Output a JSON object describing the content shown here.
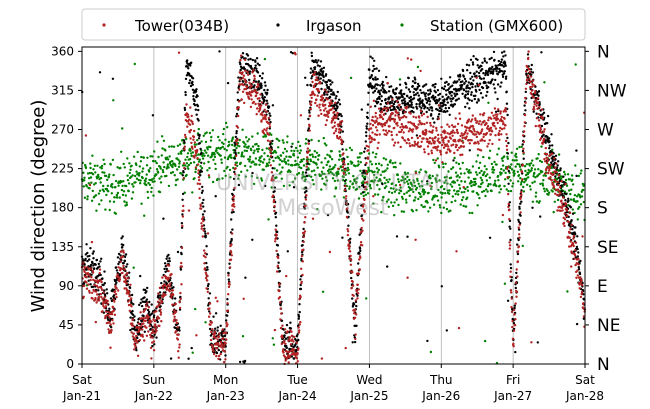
{
  "chart_data": {
    "type": "scatter",
    "ylabel": "Wind direction (degree)",
    "ylim": [
      0,
      365
    ],
    "yticks": [
      0,
      45,
      90,
      135,
      180,
      225,
      270,
      315,
      360
    ],
    "compass_labels": [
      {
        "value": 0,
        "label": "N"
      },
      {
        "value": 45,
        "label": "NE"
      },
      {
        "value": 90,
        "label": "E"
      },
      {
        "value": 135,
        "label": "SE"
      },
      {
        "value": 180,
        "label": "S"
      },
      {
        "value": 225,
        "label": "SW"
      },
      {
        "value": 270,
        "label": "W"
      },
      {
        "value": 315,
        "label": "NW"
      },
      {
        "value": 360,
        "label": "N"
      }
    ],
    "xlim": [
      "2017-01-21",
      "2017-01-28"
    ],
    "xticks": [
      {
        "day": 0,
        "line1": "Sat",
        "line2": "Jan-21"
      },
      {
        "day": 1,
        "line1": "Sun",
        "line2": "Jan-22"
      },
      {
        "day": 2,
        "line1": "Mon",
        "line2": "Jan-23"
      },
      {
        "day": 3,
        "line1": "Tue",
        "line2": "Jan-24"
      },
      {
        "day": 4,
        "line1": "Wed",
        "line2": "Jan-25"
      },
      {
        "day": 5,
        "line1": "Thu",
        "line2": "Jan-26"
      },
      {
        "day": 6,
        "line1": "Fri",
        "line2": "Jan-27"
      },
      {
        "day": 7,
        "line1": "Sat",
        "line2": "Jan-28"
      }
    ],
    "grid": "vertical",
    "legend_position": "top-center",
    "watermark_lines": [
      "UNIVERSITY OF UTAH",
      "MesoWest"
    ],
    "series": [
      {
        "name": "Tower(034B)",
        "color": "#b22222",
        "points_per_day": 260,
        "approx_direction": [
          [
            0,
            105
          ],
          [
            0.25,
            85
          ],
          [
            0.4,
            45
          ],
          [
            0.55,
            125
          ],
          [
            0.75,
            25
          ],
          [
            0.9,
            55
          ],
          [
            1.0,
            35
          ],
          [
            1.2,
            110
          ],
          [
            1.35,
            20
          ],
          [
            1.45,
            295
          ],
          [
            1.6,
            240
          ],
          [
            1.8,
            30
          ],
          [
            2.0,
            20
          ],
          [
            2.2,
            330
          ],
          [
            2.4,
            315
          ],
          [
            2.6,
            270
          ],
          [
            2.8,
            20
          ],
          [
            3.0,
            15
          ],
          [
            3.2,
            325
          ],
          [
            3.4,
            295
          ],
          [
            3.6,
            270
          ],
          [
            3.8,
            45
          ],
          [
            4.0,
            270
          ],
          [
            4.2,
            280
          ],
          [
            4.5,
            275
          ],
          [
            4.8,
            265
          ],
          [
            5.0,
            255
          ],
          [
            5.3,
            265
          ],
          [
            5.6,
            270
          ],
          [
            5.9,
            280
          ],
          [
            6.0,
            20
          ],
          [
            6.2,
            345
          ],
          [
            6.5,
            225
          ],
          [
            6.7,
            185
          ],
          [
            6.9,
            110
          ],
          [
            7.0,
            55
          ]
        ]
      },
      {
        "name": "Irgason",
        "color": "#000000",
        "points_per_day": 300,
        "approx_direction": [
          [
            0,
            115
          ],
          [
            0.25,
            100
          ],
          [
            0.4,
            55
          ],
          [
            0.55,
            135
          ],
          [
            0.75,
            35
          ],
          [
            0.9,
            75
          ],
          [
            1.0,
            40
          ],
          [
            1.2,
            115
          ],
          [
            1.35,
            25
          ],
          [
            1.45,
            345
          ],
          [
            1.6,
            300
          ],
          [
            1.8,
            30
          ],
          [
            2.0,
            25
          ],
          [
            2.2,
            345
          ],
          [
            2.4,
            335
          ],
          [
            2.6,
            300
          ],
          [
            2.8,
            25
          ],
          [
            3.0,
            20
          ],
          [
            3.2,
            345
          ],
          [
            3.4,
            320
          ],
          [
            3.6,
            290
          ],
          [
            3.8,
            40
          ],
          [
            4.0,
            330
          ],
          [
            4.3,
            300
          ],
          [
            4.6,
            310
          ],
          [
            5.0,
            300
          ],
          [
            5.3,
            320
          ],
          [
            5.6,
            330
          ],
          [
            5.9,
            340
          ],
          [
            6.0,
            25
          ],
          [
            6.2,
            345
          ],
          [
            6.5,
            250
          ],
          [
            6.7,
            200
          ],
          [
            6.9,
            120
          ],
          [
            7.0,
            65
          ]
        ]
      },
      {
        "name": "Station (GMX600)",
        "color": "#008000",
        "points_per_day": 200,
        "approx_direction": [
          [
            0,
            210
          ],
          [
            0.5,
            205
          ],
          [
            1.0,
            225
          ],
          [
            1.5,
            235
          ],
          [
            2.0,
            245
          ],
          [
            2.5,
            240
          ],
          [
            3.0,
            230
          ],
          [
            3.5,
            225
          ],
          [
            4.0,
            215
          ],
          [
            4.5,
            200
          ],
          [
            5.0,
            205
          ],
          [
            5.5,
            210
          ],
          [
            6.0,
            225
          ],
          [
            6.5,
            215
          ],
          [
            7.0,
            195
          ]
        ]
      }
    ]
  }
}
